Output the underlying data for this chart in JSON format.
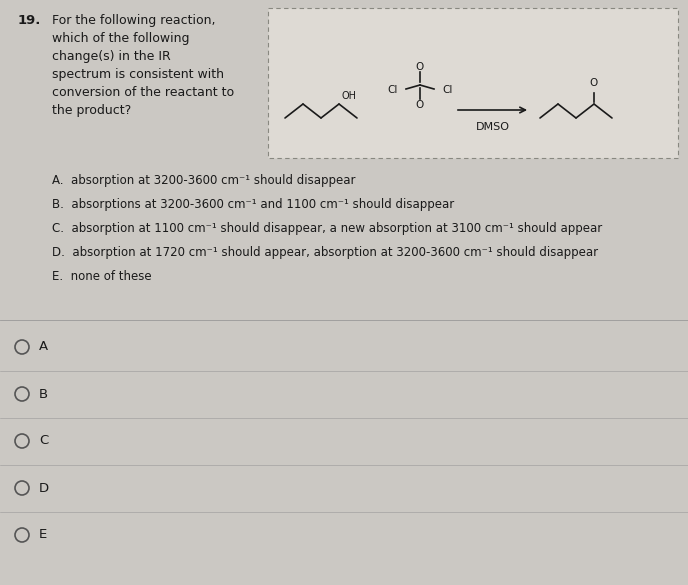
{
  "question_number": "19.",
  "question_text": "For the following reaction,\nwhich of the following\nchange(s) in the IR\nspectrum is consistent with\nconversion of the reactant to\nthe product?",
  "dmso_label": "DMSO",
  "choice_A": "A.  absorption at 3200-3600 cm⁻¹ should disappear",
  "choice_B": "B.  absorptions at 3200-3600 cm⁻¹ and 1100 cm⁻¹ should disappear",
  "choice_C": "C.  absorption at 1100 cm⁻¹ should disappear, a new absorption at 3100 cm⁻¹ should appear",
  "choice_D": "D.  absorption at 1720 cm⁻¹ should appear, absorption at 3200-3600 cm⁻¹ should disappear",
  "choice_E": "E.  none of these",
  "answer_choices": [
    "A",
    "B",
    "C",
    "D",
    "E"
  ],
  "bg_color": "#cbc8c3",
  "text_color": "#1a1a1a",
  "box_bg": "#dedad4",
  "fig_width": 6.88,
  "fig_height": 5.85,
  "dpi": 100
}
